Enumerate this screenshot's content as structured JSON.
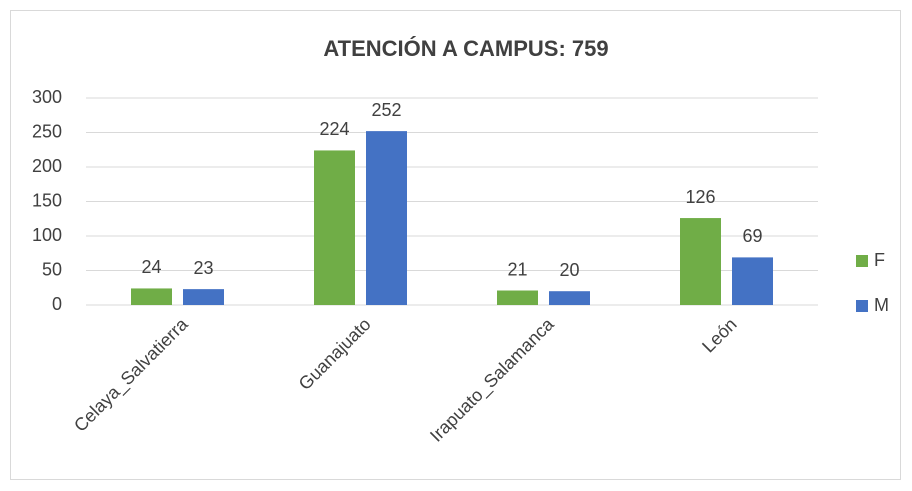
{
  "chart_data": {
    "type": "bar",
    "title": "ATENCIÓN A CAMPUS: 759",
    "categories": [
      "Celaya_Salvatierra",
      "Guanajuato",
      "Irapuato_Salamanca",
      "León"
    ],
    "series": [
      {
        "name": "F",
        "color": "#70ad47",
        "values": [
          24,
          224,
          21,
          126
        ]
      },
      {
        "name": "M",
        "color": "#4472c4",
        "values": [
          23,
          252,
          20,
          69
        ]
      }
    ],
    "ylim": [
      0,
      300
    ],
    "yticks": [
      0,
      50,
      100,
      150,
      200,
      250,
      300
    ],
    "grid": true,
    "legend": "right"
  }
}
